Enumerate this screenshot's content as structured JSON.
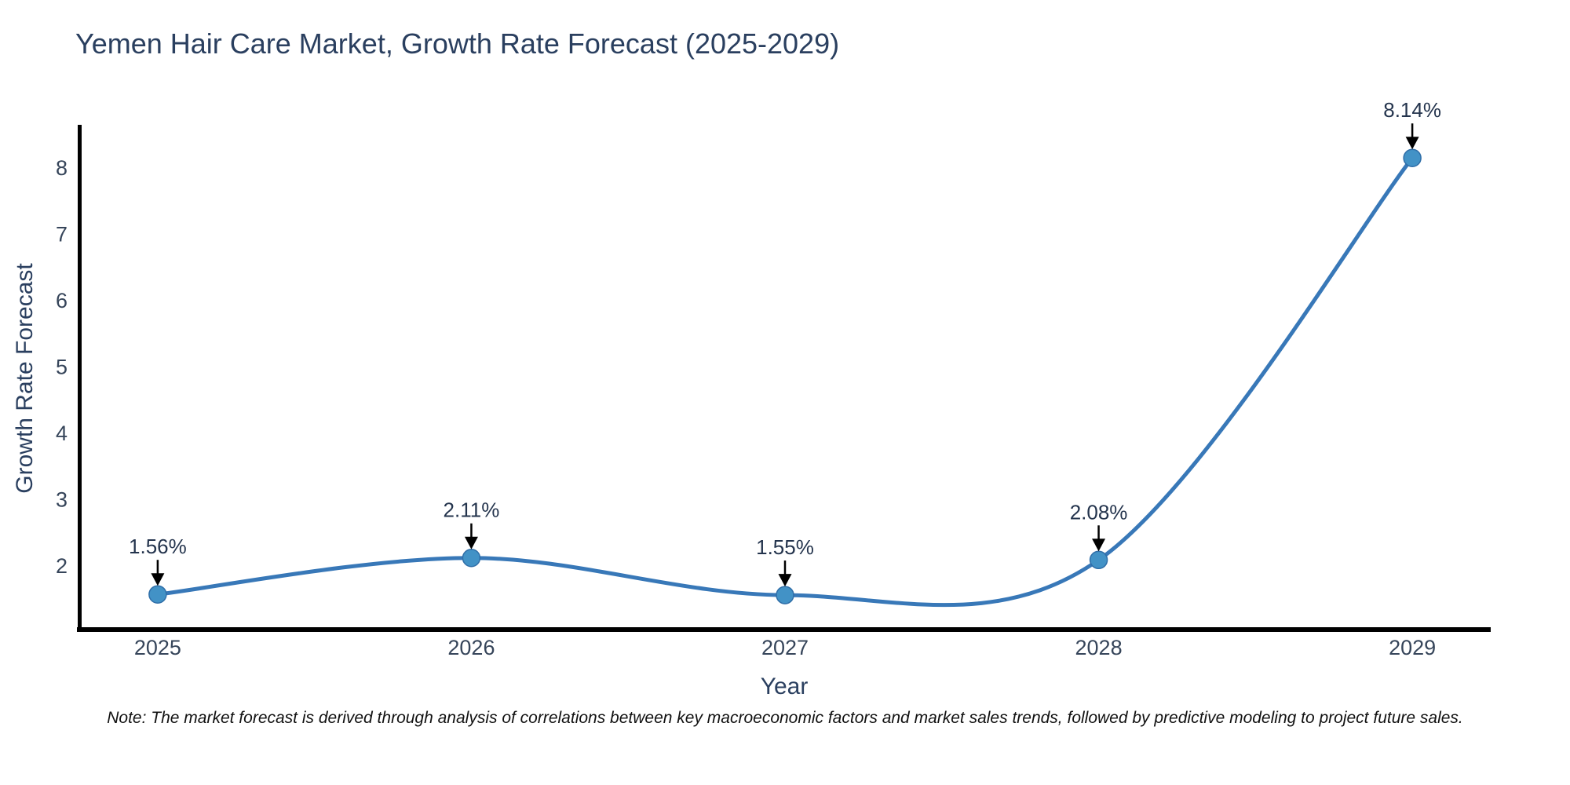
{
  "header": {
    "title": "Yemen Hair Care Market, Growth Rate Forecast (2025-2029)"
  },
  "footer": {
    "note": "Note: The market forecast is derived through analysis of correlations between key macroeconomic factors and market sales trends, followed by predictive modeling to project future sales."
  },
  "chart_data": {
    "type": "line",
    "title": "Yemen Hair Care Market, Growth Rate Forecast (2025-2029)",
    "xlabel": "Year",
    "ylabel": "Growth Rate Forecast",
    "x": [
      2025,
      2026,
      2027,
      2028,
      2029
    ],
    "series": [
      {
        "name": "Growth Rate Forecast",
        "values": [
          1.56,
          2.11,
          1.55,
          2.08,
          8.14
        ]
      }
    ],
    "point_labels": [
      "1.56%",
      "2.11%",
      "1.55%",
      "2.08%",
      "8.14%"
    ],
    "xticks": [
      2025,
      2026,
      2027,
      2028,
      2029
    ],
    "yticks": [
      2,
      3,
      4,
      5,
      6,
      7,
      8
    ],
    "xlim": [
      2024.745,
      2029.25
    ],
    "ylim": [
      1.03,
      8.64
    ],
    "grid": false,
    "legend": "none",
    "line_shape": "spline",
    "marker_radius": 11,
    "line_width": 5,
    "colors": {
      "line": "#3878b8",
      "marker": "#4292c6",
      "marker_edge": "#2f6ea8",
      "axis": "#000000",
      "arrow": "#000000",
      "title_text": "#2a3f5f",
      "axis_label_text": "#2a3f5f",
      "tick_text": "#36455a",
      "annotation_text": "#24344d",
      "note_text": "#111111",
      "background": "#ffffff"
    }
  }
}
